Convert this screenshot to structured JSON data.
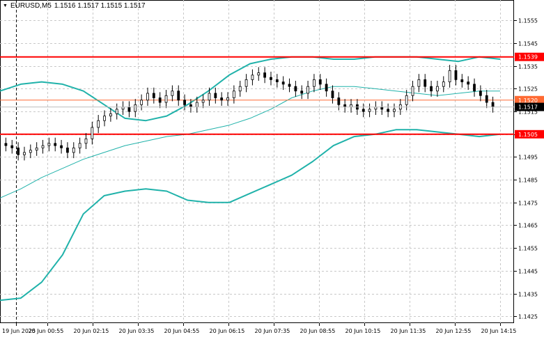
{
  "header": {
    "symbol": "EURUSD,M5",
    "ohlc": "1.1516 1.1517 1.1515 1.1517"
  },
  "colors": {
    "background": "#ffffff",
    "grid": "#c8c8c8",
    "bands": "#20b2aa",
    "ma": "#20b2aa",
    "candle": "#000000",
    "resistance": "#ff0000",
    "midline": "#ff6a33",
    "axis_text": "#000000"
  },
  "chart_data": {
    "type": "candlestick",
    "symbol": "EURUSD",
    "timeframe": "M5",
    "ylim": [
      1.1422,
      1.1564
    ],
    "y_ticks": [
      "1.1555",
      "1.1545",
      "1.1535",
      "1.1525",
      "1.1515",
      "1.1505",
      "1.1495",
      "1.1485",
      "1.1475",
      "1.1465",
      "1.1455",
      "1.1445",
      "1.1435",
      "1.1425"
    ],
    "x_ticks": [
      "19 Jun 2025",
      "20 Jun 00:55",
      "20 Jun 02:15",
      "20 Jun 03:35",
      "20 Jun 04:55",
      "20 Jun 06:15",
      "20 Jun 07:35",
      "20 Jun 08:55",
      "20 Jun 10:15",
      "20 Jun 11:35",
      "20 Jun 12:55",
      "20 Jun 14:15"
    ],
    "grid": true,
    "horizontal_lines": [
      {
        "price": 1.1539,
        "label": "1.1539",
        "color": "#ff0000"
      },
      {
        "price": 1.152,
        "label": "1.1520",
        "color": "#ff6a33"
      },
      {
        "price": 1.1505,
        "label": "1.1505",
        "color": "#ff0000"
      }
    ],
    "current_price": {
      "price": 1.1517,
      "label": "1.1517"
    },
    "close_series": [
      1.15,
      1.1499,
      1.1496,
      1.1497,
      1.1498,
      1.1499,
      1.15,
      1.1501,
      1.15,
      1.1499,
      1.1497,
      1.1499,
      1.1501,
      1.1503,
      1.1508,
      1.1511,
      1.1513,
      1.1514,
      1.1516,
      1.1517,
      1.1515,
      1.1518,
      1.152,
      1.1523,
      1.1521,
      1.1519,
      1.1522,
      1.1524,
      1.152,
      1.1518,
      1.1517,
      1.1519,
      1.152,
      1.1523,
      1.1521,
      1.152,
      1.1521,
      1.1524,
      1.1526,
      1.1529,
      1.1531,
      1.1532,
      1.153,
      1.1529,
      1.1528,
      1.1527,
      1.1526,
      1.1524,
      1.1523,
      1.1526,
      1.1529,
      1.1527,
      1.1524,
      1.1521,
      1.1518,
      1.1517,
      1.1518,
      1.1516,
      1.1515,
      1.1516,
      1.1517,
      1.1516,
      1.1515,
      1.1516,
      1.1518,
      1.1522,
      1.1526,
      1.1529,
      1.1526,
      1.1524,
      1.1526,
      1.1528,
      1.1533,
      1.1529,
      1.1528,
      1.1527,
      1.1524,
      1.1522,
      1.1519,
      1.1517
    ],
    "upper_band": [
      1.1524,
      1.1527,
      1.1528,
      1.1527,
      1.1524,
      1.1518,
      1.1512,
      1.1511,
      1.1513,
      1.1518,
      1.1524,
      1.1531,
      1.1536,
      1.1538,
      1.1539,
      1.1539,
      1.1538,
      1.1538,
      1.1539,
      1.1539,
      1.1539,
      1.1538,
      1.1537,
      1.1539,
      1.1538
    ],
    "lower_band": [
      1.1432,
      1.1433,
      1.144,
      1.1452,
      1.147,
      1.1478,
      1.148,
      1.1481,
      1.148,
      1.1476,
      1.1475,
      1.1475,
      1.1479,
      1.1483,
      1.1487,
      1.1493,
      1.15,
      1.1504,
      1.1505,
      1.1507,
      1.1507,
      1.1506,
      1.1505,
      1.1504,
      1.1505
    ],
    "moving_average": [
      1.1477,
      1.1481,
      1.1486,
      1.149,
      1.1494,
      1.1497,
      1.15,
      1.1502,
      1.1504,
      1.1505,
      1.1507,
      1.1509,
      1.1512,
      1.1516,
      1.1521,
      1.1524,
      1.1526,
      1.1526,
      1.1525,
      1.1524,
      1.1523,
      1.1522,
      1.1523,
      1.1524,
      1.1524
    ]
  }
}
